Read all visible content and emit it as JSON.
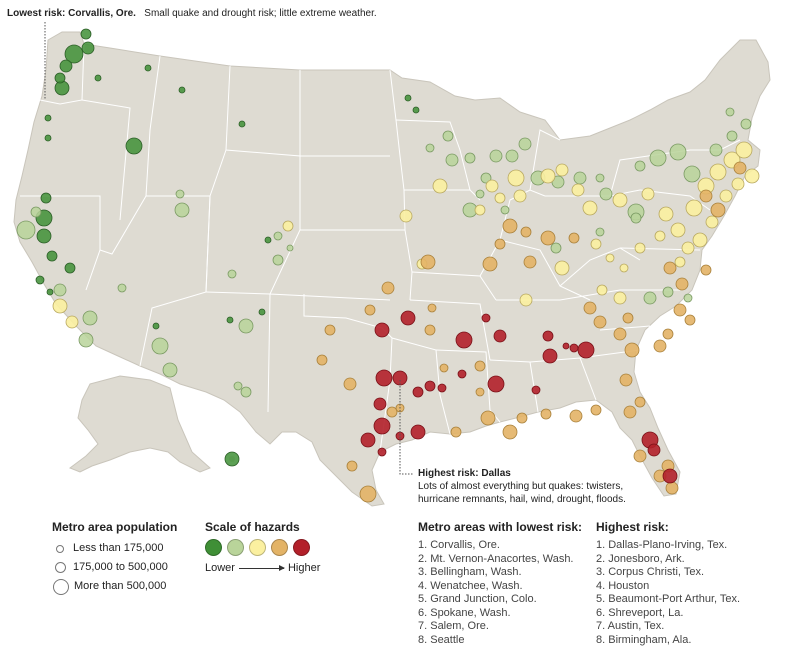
{
  "callouts": {
    "lowest_bold": "Lowest risk: Corvallis, Ore.",
    "lowest_note": "Small quake and drought risk; little extreme weather.",
    "highest_bold": "Highest risk: Dallas",
    "highest_note_1": "Lots of almost everything but quakes: twisters,",
    "highest_note_2": "hurricane remnants, hail, wind, drought, floods."
  },
  "legend_population": {
    "title": "Metro area population",
    "items": [
      "Less than 175,000",
      "175,000 to 500,000",
      "More than 500,000"
    ]
  },
  "legend_hazards": {
    "title": "Scale of hazards",
    "low_label": "Lower",
    "high_label": "Higher",
    "colors": [
      "#3f8f36",
      "#b9d49a",
      "#fbf0a0",
      "#e3b366",
      "#b3202a"
    ]
  },
  "lowest_list": {
    "title": "Metro areas with lowest risk:",
    "items": [
      "1. Corvallis, Ore.",
      "2. Mt. Vernon-Anacortes, Wash.",
      "3. Bellingham, Wash.",
      "4. Wenatchee, Wash.",
      "5. Grand Junction, Colo.",
      "6. Spokane, Wash.",
      "7. Salem, Ore.",
      "8. Seattle"
    ]
  },
  "highest_list": {
    "title": "Highest risk:",
    "items": [
      "1. Dallas-Plano-Irving, Tex.",
      "2. Jonesboro, Ark.",
      "3. Corpus Christi, Tex.",
      "4. Houston",
      "5. Beaumont-Port Arthur, Tex.",
      "6. Shreveport, La.",
      "7. Austin, Tex.",
      "8. Birmingham, Ala."
    ]
  },
  "map_colors": {
    "land": "#dedbd2",
    "borders": "#ffffff",
    "stroke": "#888888"
  }
}
